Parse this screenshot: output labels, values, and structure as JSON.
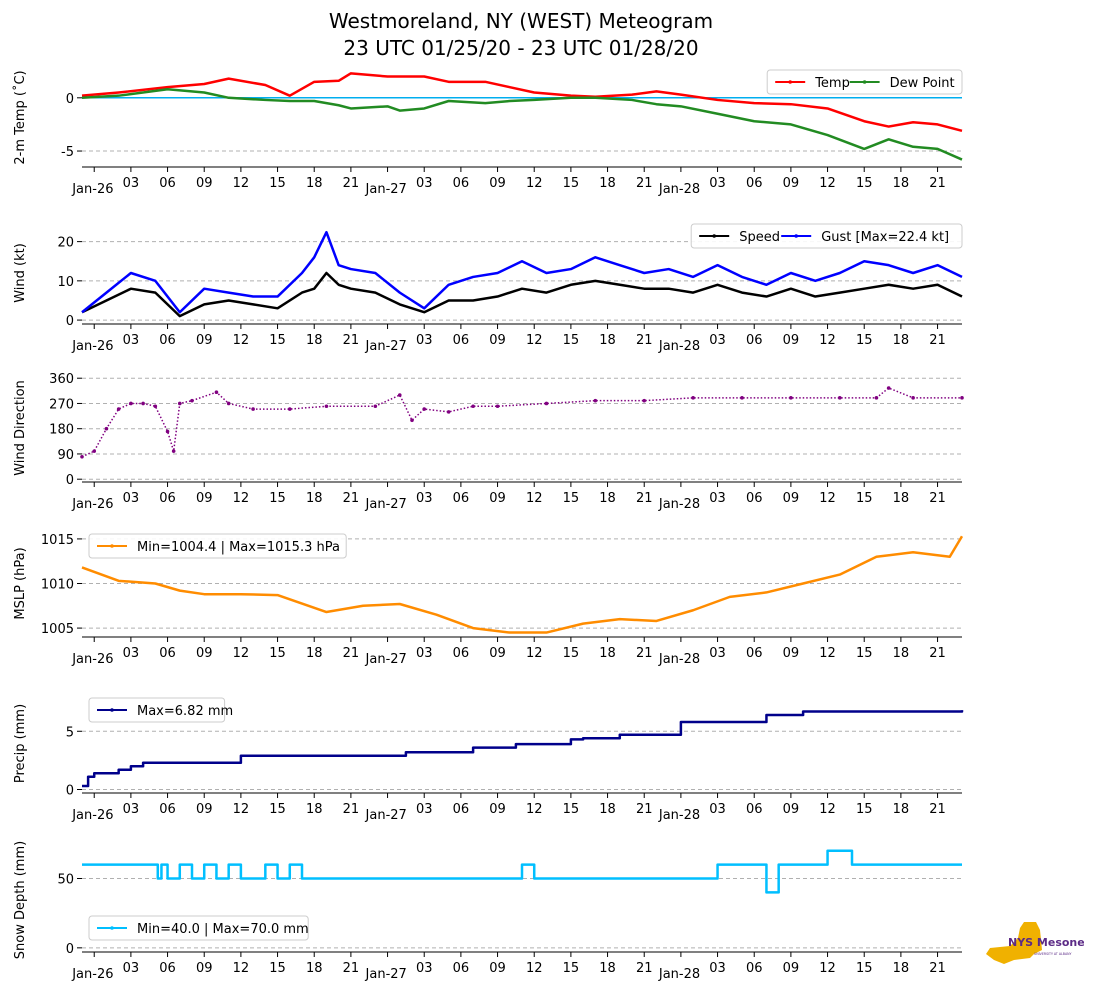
{
  "title": {
    "line1": "Westmoreland, NY (WEST) Meteogram",
    "line2": "23 UTC 01/25/20 - 23 UTC 01/28/20"
  },
  "logo": {
    "text": "NYS Mesonet",
    "subtext": "UNIVERSITY AT ALBANY"
  },
  "chart_data": [
    {
      "type": "line",
      "ylabel": "2-m Temp ($^\\circ$C)",
      "ylabel_display": "2-m Temp (˚C)",
      "x_hours": [
        0,
        3,
        7,
        10,
        12,
        15,
        17,
        19,
        21,
        22,
        25,
        26,
        28,
        30,
        33,
        35,
        37,
        40,
        42,
        45,
        47,
        49,
        52,
        55,
        58,
        61,
        64,
        66,
        68,
        70,
        72
      ],
      "ylim": [
        -6.5,
        2.8
      ],
      "yticks": [
        0,
        -5
      ],
      "grid": "dashed",
      "legend": "top-right",
      "reference_line": {
        "y": 0,
        "color": "#00aeef"
      },
      "series": [
        {
          "name": "Temp",
          "color": "#ff0000",
          "values": [
            0.2,
            0.5,
            1.0,
            1.3,
            1.8,
            1.2,
            0.2,
            1.5,
            1.6,
            2.3,
            2.0,
            2.0,
            2.0,
            1.5,
            1.5,
            1.0,
            0.5,
            0.2,
            0.1,
            0.3,
            0.6,
            0.3,
            -0.2,
            -0.5,
            -0.6,
            -1.0,
            -2.2,
            -2.7,
            -2.3,
            -2.5,
            -3.1
          ]
        },
        {
          "name": "Dew Point",
          "color": "#228b22",
          "values": [
            0.0,
            0.2,
            0.8,
            0.5,
            0.0,
            -0.2,
            -0.3,
            -0.3,
            -0.7,
            -1.0,
            -0.8,
            -1.2,
            -1.0,
            -0.3,
            -0.5,
            -0.3,
            -0.2,
            0.0,
            0.0,
            -0.2,
            -0.6,
            -0.8,
            -1.5,
            -2.2,
            -2.5,
            -3.5,
            -4.8,
            -3.9,
            -4.6,
            -4.8,
            -5.8
          ]
        }
      ]
    },
    {
      "type": "line",
      "ylabel": "Wind (kt)",
      "x_hours": [
        0,
        2,
        4,
        6,
        8,
        10,
        12,
        14,
        16,
        18,
        19,
        20,
        21,
        22,
        24,
        26,
        28,
        30,
        32,
        34,
        36,
        38,
        40,
        42,
        44,
        46,
        48,
        50,
        52,
        54,
        56,
        58,
        60,
        62,
        64,
        66,
        68,
        70,
        72
      ],
      "ylim": [
        -1,
        25
      ],
      "yticks": [
        0,
        10,
        20
      ],
      "grid": "dashed",
      "legend": "top-right",
      "series": [
        {
          "name": "Speed",
          "color": "#000000",
          "values": [
            2,
            5,
            8,
            7,
            1,
            4,
            5,
            4,
            3,
            7,
            8,
            12,
            9,
            8,
            7,
            4,
            2,
            5,
            5,
            6,
            8,
            7,
            9,
            10,
            9,
            8,
            8,
            7,
            9,
            7,
            6,
            8,
            6,
            7,
            8,
            9,
            8,
            9,
            6
          ]
        },
        {
          "name": "Gust [Max=22.4 kt]",
          "color": "#0000ff",
          "values": [
            2,
            7,
            12,
            10,
            2,
            8,
            7,
            6,
            6,
            12,
            16,
            22.4,
            14,
            13,
            12,
            7,
            3,
            9,
            11,
            12,
            15,
            12,
            13,
            16,
            14,
            12,
            13,
            11,
            14,
            11,
            9,
            12,
            10,
            12,
            15,
            14,
            12,
            14,
            11
          ]
        }
      ]
    },
    {
      "type": "scatter",
      "ylabel": "Wind Direction",
      "x_hours": [
        0,
        1,
        2,
        3,
        4,
        5,
        6,
        7,
        7.5,
        8,
        9,
        11,
        12,
        14,
        17,
        20,
        24,
        26,
        27,
        28,
        30,
        32,
        34,
        38,
        42,
        46,
        50,
        54,
        58,
        62,
        65,
        66,
        68,
        72
      ],
      "ylim": [
        -10,
        375
      ],
      "yticks": [
        0,
        90,
        180,
        270,
        360
      ],
      "grid": "dashed",
      "series": [
        {
          "name": "Wind Direction",
          "color": "#800080",
          "values": [
            80,
            100,
            180,
            250,
            270,
            270,
            260,
            170,
            100,
            270,
            280,
            310,
            270,
            250,
            250,
            260,
            260,
            300,
            210,
            250,
            240,
            260,
            260,
            270,
            280,
            280,
            290,
            290,
            290,
            290,
            290,
            325,
            290,
            290
          ]
        }
      ]
    },
    {
      "type": "line",
      "ylabel": "MSLP (hPa)",
      "x_hours": [
        0,
        3,
        6,
        8,
        10,
        13,
        16,
        20,
        23,
        26,
        29,
        32,
        35,
        38,
        41,
        44,
        47,
        50,
        53,
        56,
        59,
        62,
        65,
        68,
        71,
        72
      ],
      "ylim": [
        1004,
        1016
      ],
      "yticks": [
        1005,
        1010,
        1015
      ],
      "grid": "dashed",
      "legend": "top-left",
      "series": [
        {
          "name": "Min=1004.4 | Max=1015.3 hPa",
          "color": "#ff8c00",
          "values": [
            1011.8,
            1010.3,
            1010.0,
            1009.2,
            1008.8,
            1008.8,
            1008.7,
            1006.8,
            1007.5,
            1007.7,
            1006.5,
            1005.0,
            1004.5,
            1004.5,
            1005.5,
            1006.0,
            1005.8,
            1007.0,
            1008.5,
            1009.0,
            1010.0,
            1011.0,
            1013.0,
            1013.5,
            1013.0,
            1015.3
          ]
        }
      ]
    },
    {
      "type": "line",
      "step": true,
      "ylabel": "Precip (mm)",
      "x_hours": [
        0,
        0.5,
        1,
        3,
        4,
        5,
        12.5,
        13,
        26,
        26.5,
        31,
        32,
        35,
        35.5,
        40,
        41,
        43,
        44,
        48,
        49,
        55,
        56,
        59,
        72
      ],
      "ylim": [
        -0.3,
        8.2
      ],
      "yticks": [
        0,
        5
      ],
      "grid": "dashed",
      "legend": "top-left",
      "series": [
        {
          "name": "Max=6.82 mm",
          "color": "#00008b",
          "values": [
            0.3,
            1.1,
            1.4,
            1.7,
            2.0,
            2.3,
            2.3,
            2.9,
            2.9,
            3.2,
            3.2,
            3.6,
            3.6,
            3.9,
            4.3,
            4.4,
            4.4,
            4.7,
            4.7,
            5.8,
            5.8,
            6.4,
            6.7,
            6.82
          ]
        }
      ]
    },
    {
      "type": "line",
      "step": true,
      "ylabel": "Snow Depth (mm)",
      "x_hours": [
        0,
        6,
        6.2,
        6.5,
        7,
        8,
        9,
        10,
        11,
        12,
        13,
        15,
        16,
        17,
        18,
        35,
        36,
        37,
        41,
        52,
        53,
        56,
        57,
        59,
        61,
        63,
        72
      ],
      "ylim": [
        -3,
        72
      ],
      "yticks": [
        0,
        50
      ],
      "grid": "dashed",
      "legend": "bottom-left",
      "series": [
        {
          "name": "Min=40.0 | Max=70.0 mm",
          "color": "#00bfff",
          "values": [
            60,
            60,
            50,
            60,
            50,
            60,
            50,
            60,
            50,
            60,
            50,
            60,
            50,
            60,
            50,
            50,
            60,
            50,
            50,
            60,
            60,
            40,
            60,
            60,
            70,
            60,
            60
          ]
        }
      ]
    }
  ],
  "x_axis": {
    "tick_labels": [
      "Jan-26",
      "03",
      "06",
      "09",
      "12",
      "15",
      "18",
      "21",
      "Jan-27",
      "03",
      "06",
      "09",
      "12",
      "15",
      "18",
      "21",
      "Jan-28",
      "03",
      "06",
      "09",
      "12",
      "15",
      "18",
      "21"
    ],
    "tick_hours": [
      1,
      4,
      7,
      10,
      13,
      16,
      19,
      22,
      25,
      28,
      31,
      34,
      37,
      40,
      43,
      46,
      49,
      52,
      55,
      58,
      61,
      64,
      67,
      70
    ],
    "range_hours": [
      0,
      72
    ]
  }
}
